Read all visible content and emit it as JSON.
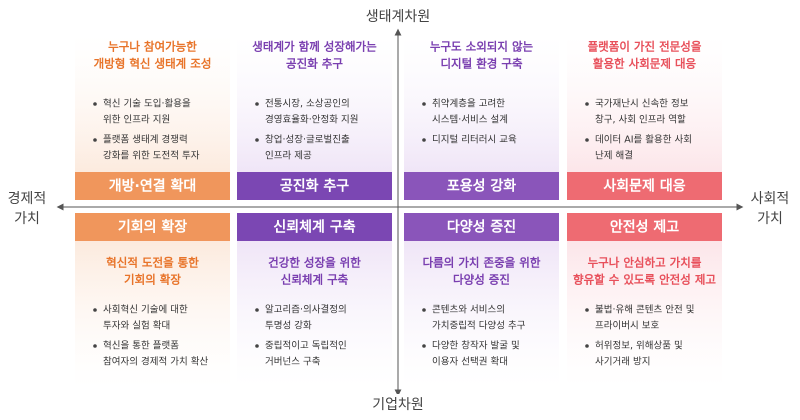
{
  "axes": {
    "top": "생태계차원",
    "bottom": "기업차원",
    "left": [
      "경제적",
      "가치"
    ],
    "right": [
      "사회적",
      "가치"
    ]
  },
  "top_cards": [
    {
      "title": [
        "누구나 참여가능한",
        "개방형 혁신 생태계 조성"
      ],
      "bullets": [
        [
          "혁신 기술 도입·활용을",
          "위한 인프라 지원"
        ],
        [
          "플랫폼 생태계 경쟁력",
          "강화를 위한 도전적 투자"
        ]
      ],
      "label": "개방·연결 확대"
    },
    {
      "title": [
        "생태계가 함께 성장해가는",
        "공진화 추구"
      ],
      "bullets": [
        [
          "전통시장, 소상공인의",
          "경영효율화·안정화 지원"
        ],
        [
          "창업·성장·글로벌진출",
          "인프라 제공"
        ]
      ],
      "label": "공진화 추구"
    },
    {
      "title": [
        "누구도 소외되지 않는",
        "디지털 환경 구축"
      ],
      "bullets": [
        [
          "취약계층을 고려한",
          "시스템·서비스 설계"
        ],
        [
          "디지털 리터러시 교육"
        ]
      ],
      "label": "포용성 강화"
    },
    {
      "title": [
        "플랫폼이 가진 전문성을",
        "활용한 사회문제 대응"
      ],
      "bullets": [
        [
          "국가재난시 신속한 정보",
          "창구, 사회 인프라 역할"
        ],
        [
          "데이터 AI를 활용한 사회",
          "난제 해결"
        ]
      ],
      "label": "사회문제 대응"
    }
  ],
  "bottom_cards": [
    {
      "label": "기회의 확장",
      "title": [
        "혁신적 도전을 통한",
        "기회의 확장"
      ],
      "bullets": [
        [
          "사회혁신 기술에 대한",
          "투자와 실험 확대"
        ],
        [
          "혁신을 통한 플랫폼",
          "참여자의 경제적 가치 확산"
        ]
      ]
    },
    {
      "label": "신뢰체계 구축",
      "title": [
        "건강한 성장을 위한",
        "신뢰체계 구축"
      ],
      "bullets": [
        [
          "알고리즘·의사결정의",
          "투명성 강화"
        ],
        [
          "중립적이고 독립적인",
          "거버넌스 구축"
        ]
      ]
    },
    {
      "label": "다양성 증진",
      "title": [
        "다름의 가치 존중을 위한",
        "다양성 증진"
      ],
      "bullets": [
        [
          "콘텐츠와 서비스의",
          "가치중립적 다양성 추구"
        ],
        [
          "다양한 창작자 발굴 및",
          "이용자 선택권 확대"
        ]
      ]
    },
    {
      "label": "안전성 제고",
      "title": [
        "누구나 안심하고 가치를",
        "향유할 수 있도록 안전성 제고"
      ],
      "bullets": [
        [
          "불법·유해 콘텐츠 안전 및",
          "프라이버시 보호"
        ],
        [
          "허위정보, 위해상품 및",
          "사기거래 방지"
        ]
      ]
    }
  ]
}
